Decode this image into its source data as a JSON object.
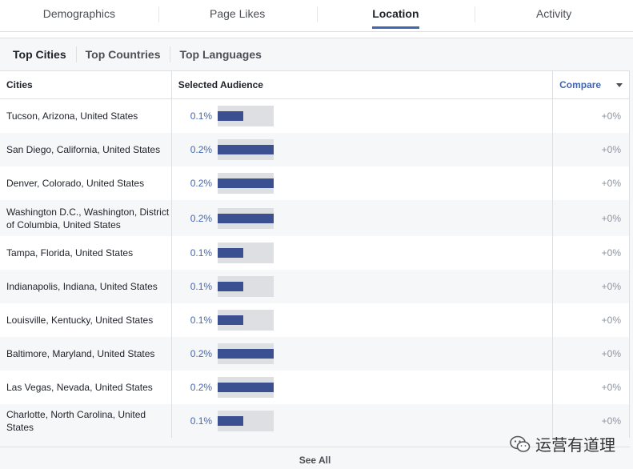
{
  "top_tabs": [
    {
      "label": "Demographics",
      "active": false
    },
    {
      "label": "Page Likes",
      "active": false
    },
    {
      "label": "Location",
      "active": true
    },
    {
      "label": "Activity",
      "active": false
    }
  ],
  "sub_tabs": [
    {
      "label": "Top Cities",
      "active": true
    },
    {
      "label": "Top Countries",
      "active": false
    },
    {
      "label": "Top Languages",
      "active": false
    }
  ],
  "table": {
    "headers": {
      "cities": "Cities",
      "audience": "Selected Audience",
      "compare": "Compare"
    },
    "rows": [
      {
        "city": "Tucson, Arizona, United States",
        "pct": "0.1%",
        "level": 0.1,
        "compare": "+0%"
      },
      {
        "city": "San Diego, California, United States",
        "pct": "0.2%",
        "level": 0.2,
        "compare": "+0%"
      },
      {
        "city": "Denver, Colorado, United States",
        "pct": "0.2%",
        "level": 0.2,
        "compare": "+0%"
      },
      {
        "city": "Washington D.C., Washington, District of Columbia, United States",
        "pct": "0.2%",
        "level": 0.2,
        "compare": "+0%"
      },
      {
        "city": "Tampa, Florida, United States",
        "pct": "0.1%",
        "level": 0.1,
        "compare": "+0%"
      },
      {
        "city": "Indianapolis, Indiana, United States",
        "pct": "0.1%",
        "level": 0.1,
        "compare": "+0%"
      },
      {
        "city": "Louisville, Kentucky, United States",
        "pct": "0.1%",
        "level": 0.1,
        "compare": "+0%"
      },
      {
        "city": "Baltimore, Maryland, United States",
        "pct": "0.2%",
        "level": 0.2,
        "compare": "+0%"
      },
      {
        "city": "Las Vegas, Nevada, United States",
        "pct": "0.2%",
        "level": 0.2,
        "compare": "+0%"
      },
      {
        "city": "Charlotte, North Carolina, United States",
        "pct": "0.1%",
        "level": 0.1,
        "compare": "+0%"
      }
    ]
  },
  "see_all": "See All",
  "watermark": {
    "text": "运营有道理",
    "icon": "wechat-icon"
  },
  "colors": {
    "accent": "#4267b2",
    "bar": "#3b5091",
    "track": "#dddfe2"
  }
}
